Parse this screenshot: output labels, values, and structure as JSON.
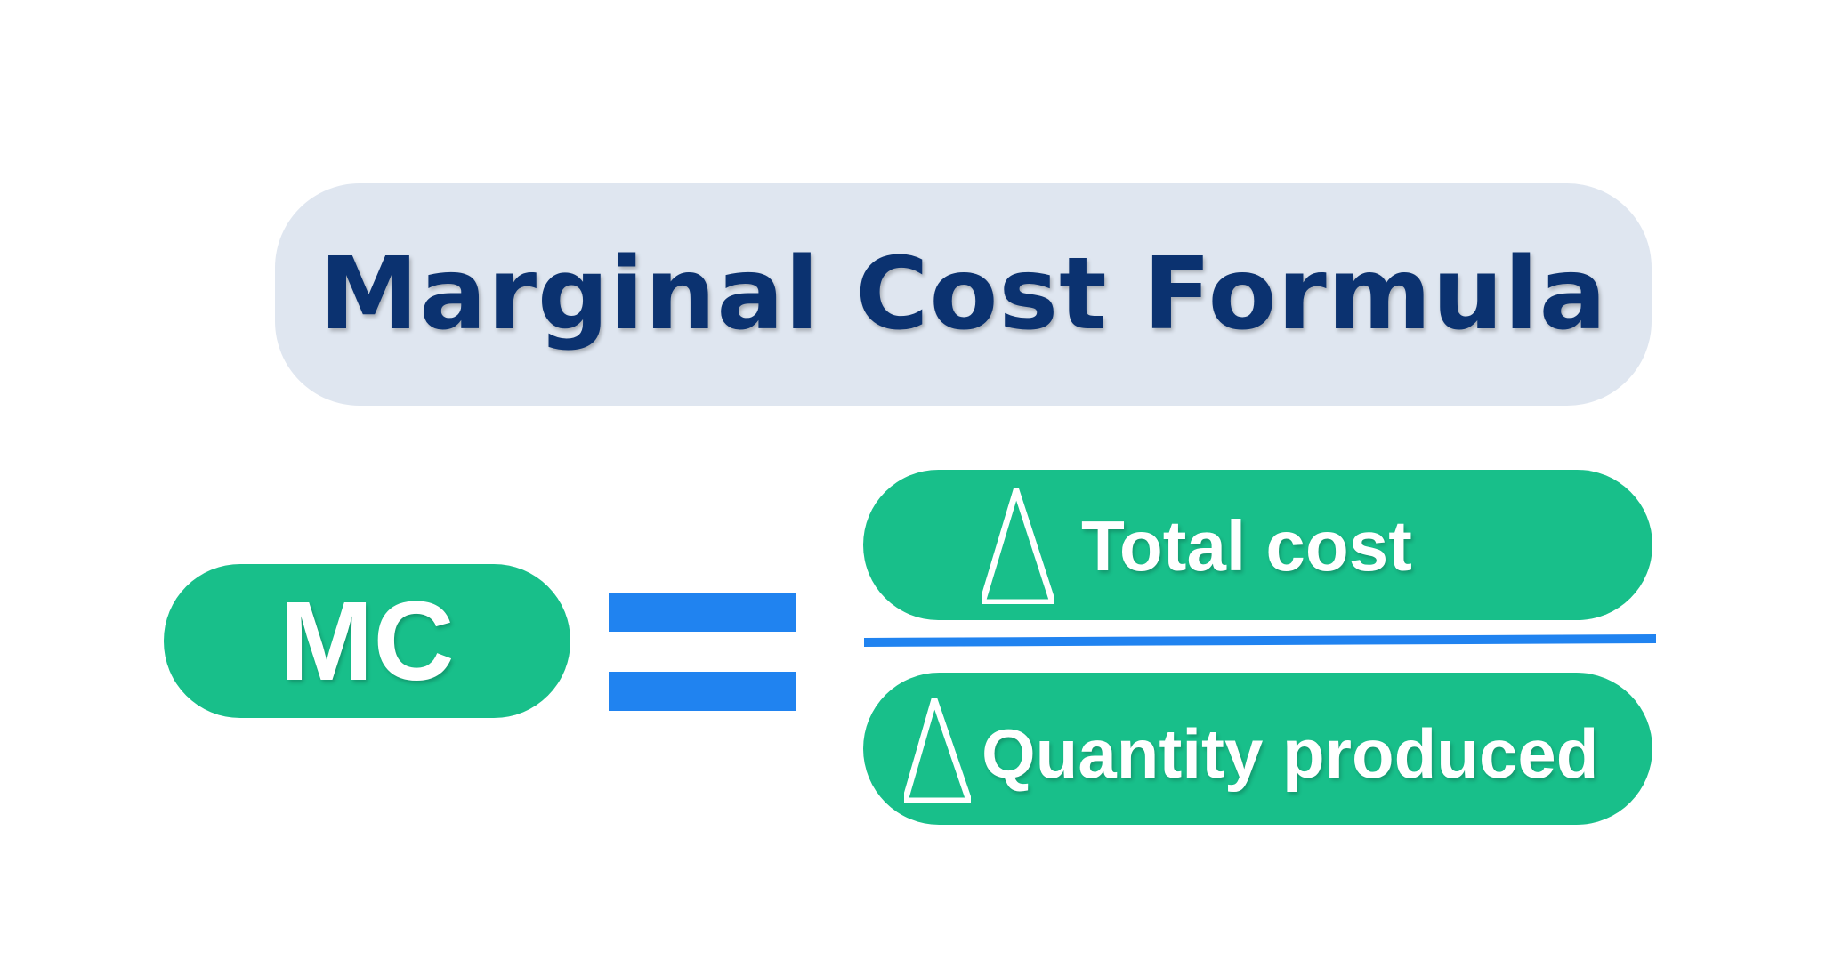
{
  "title": "Marginal Cost Formula",
  "lhs": "MC",
  "operator": "equals",
  "numerator": {
    "symbol": "delta-icon",
    "text": "Total cost"
  },
  "denominator": {
    "symbol": "delta-icon",
    "text": "Quantity produced"
  },
  "colors": {
    "green": "#18bf8a",
    "blue": "#2083f0",
    "title_bg": "#dfe6f0",
    "title_text": "#0b3270"
  }
}
